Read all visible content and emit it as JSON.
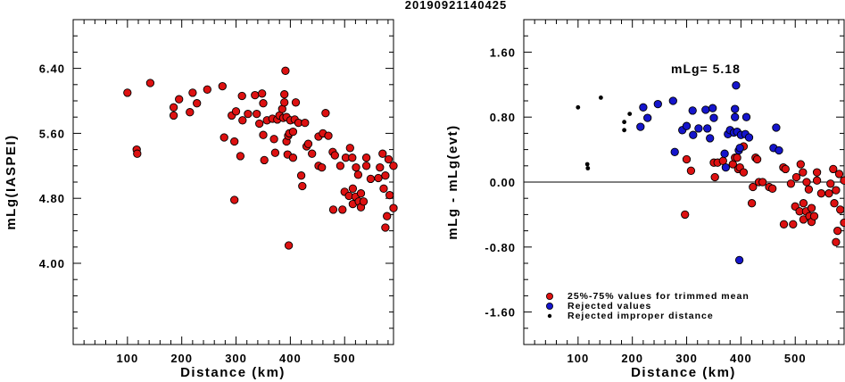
{
  "figure_title": "20190921140425",
  "chart_data": [
    {
      "type": "scatter",
      "xlabel": "Distance (km)",
      "ylabel": "mLg(IASPEI)",
      "xlim": [
        0,
        590
      ],
      "ylim": [
        3.0,
        7.0
      ],
      "xticks": [
        100,
        200,
        300,
        400,
        500
      ],
      "yticks": [
        4.0,
        4.8,
        5.6,
        6.4
      ],
      "ytick_labels": [
        "4.00",
        "4.80",
        "5.60",
        "6.40"
      ],
      "grid": false,
      "series": [
        {
          "color": "#dd1111",
          "points": [
            [
              100,
              6.1
            ],
            [
              117,
              5.4
            ],
            [
              118,
              5.35
            ],
            [
              142,
              6.22
            ],
            [
              185,
              5.92
            ],
            [
              185,
              5.82
            ],
            [
              195,
              6.02
            ],
            [
              215,
              5.86
            ],
            [
              220,
              6.1
            ],
            [
              228,
              5.97
            ],
            [
              247,
              6.14
            ],
            [
              275,
              6.18
            ],
            [
              278,
              5.55
            ],
            [
              292,
              5.82
            ],
            [
              297,
              4.78
            ],
            [
              297,
              5.5
            ],
            [
              300,
              5.87
            ],
            [
              308,
              5.32
            ],
            [
              312,
              5.76
            ],
            [
              311,
              6.06
            ],
            [
              322,
              5.84
            ],
            [
              335,
              6.07
            ],
            [
              338,
              5.84
            ],
            [
              343,
              5.72
            ],
            [
              348,
              6.09
            ],
            [
              350,
              5.97
            ],
            [
              350,
              5.58
            ],
            [
              352,
              5.27
            ],
            [
              357,
              5.76
            ],
            [
              367,
              5.78
            ],
            [
              370,
              5.53
            ],
            [
              372,
              5.36
            ],
            [
              376,
              5.77
            ],
            [
              380,
              5.82
            ],
            [
              385,
              5.9
            ],
            [
              387,
              5.79
            ],
            [
              389,
              5.98
            ],
            [
              389,
              6.08
            ],
            [
              391,
              6.37
            ],
            [
              393,
              5.5
            ],
            [
              393,
              5.8
            ],
            [
              395,
              5.34
            ],
            [
              396,
              5.57
            ],
            [
              397,
              4.22
            ],
            [
              398,
              5.6
            ],
            [
              400,
              5.76
            ],
            [
              405,
              5.3
            ],
            [
              405,
              5.62
            ],
            [
              408,
              5.77
            ],
            [
              410,
              5.98
            ],
            [
              415,
              5.73
            ],
            [
              420,
              5.08
            ],
            [
              422,
              4.95
            ],
            [
              427,
              5.73
            ],
            [
              430,
              5.44
            ],
            [
              433,
              5.47
            ],
            [
              440,
              5.35
            ],
            [
              452,
              5.2
            ],
            [
              452,
              5.56
            ],
            [
              458,
              5.18
            ],
            [
              460,
              5.6
            ],
            [
              465,
              5.85
            ],
            [
              470,
              5.57
            ],
            [
              478,
              5.37
            ],
            [
              479,
              4.66
            ],
            [
              482,
              5.33
            ],
            [
              492,
              5.2
            ],
            [
              496,
              4.66
            ],
            [
              500,
              4.88
            ],
            [
              502,
              5.3
            ],
            [
              508,
              4.83
            ],
            [
              510,
              5.42
            ],
            [
              514,
              5.3
            ],
            [
              515,
              4.73
            ],
            [
              515,
              4.92
            ],
            [
              520,
              4.82
            ],
            [
              521,
              5.18
            ],
            [
              525,
              5.09
            ],
            [
              526,
              4.76
            ],
            [
              530,
              4.86
            ],
            [
              530,
              4.69
            ],
            [
              535,
              4.76
            ],
            [
              540,
              5.2
            ],
            [
              540,
              5.3
            ],
            [
              548,
              5.04
            ],
            [
              562,
              5.05
            ],
            [
              565,
              5.18
            ],
            [
              570,
              5.35
            ],
            [
              572,
              4.92
            ],
            [
              575,
              5.08
            ],
            [
              575,
              4.44
            ],
            [
              578,
              4.58
            ],
            [
              581,
              5.28
            ],
            [
              583,
              4.84
            ],
            [
              590,
              5.2
            ],
            [
              590,
              4.68
            ]
          ]
        }
      ]
    },
    {
      "type": "scatter",
      "annotation": "mLg= 5.18",
      "xlabel": "Distance (km)",
      "ylabel": "mLg - mLg(evt)",
      "xlim": [
        0,
        590
      ],
      "ylim": [
        -2.0,
        2.0
      ],
      "xticks": [
        100,
        200,
        300,
        400,
        500
      ],
      "yticks": [
        -1.6,
        -0.8,
        0.0,
        0.8,
        1.6
      ],
      "ytick_labels": [
        "-1.60",
        "-0.80",
        "0.00",
        "0.80",
        "1.60"
      ],
      "reference_line": 0.0,
      "grid": false,
      "legend_position": "bottom-left",
      "series": [
        {
          "name": "25%-75% values for trimmed mean",
          "color": "#dd1111",
          "marker": "circle",
          "points": [
            [
              297,
              -0.4
            ],
            [
              300,
              0.28
            ],
            [
              308,
              0.14
            ],
            [
              350,
              0.24
            ],
            [
              352,
              0.06
            ],
            [
              357,
              0.24
            ],
            [
              367,
              0.26
            ],
            [
              385,
              0.22
            ],
            [
              389,
              0.3
            ],
            [
              393,
              0.3
            ],
            [
              395,
              0.16
            ],
            [
              398,
              0.18
            ],
            [
              405,
              0.12
            ],
            [
              405,
              0.44
            ],
            [
              420,
              -0.26
            ],
            [
              422,
              -0.06
            ],
            [
              427,
              0.3
            ],
            [
              430,
              0.28
            ],
            [
              433,
              0.0
            ],
            [
              440,
              0.0
            ],
            [
              452,
              -0.06
            ],
            [
              458,
              -0.08
            ],
            [
              478,
              0.18
            ],
            [
              479,
              -0.52
            ],
            [
              482,
              0.16
            ],
            [
              492,
              -0.02
            ],
            [
              496,
              -0.52
            ],
            [
              500,
              -0.3
            ],
            [
              502,
              0.06
            ],
            [
              508,
              -0.36
            ],
            [
              510,
              0.22
            ],
            [
              514,
              0.12
            ],
            [
              515,
              -0.46
            ],
            [
              515,
              -0.26
            ],
            [
              520,
              -0.36
            ],
            [
              521,
              0.0
            ],
            [
              525,
              -0.09
            ],
            [
              526,
              -0.42
            ],
            [
              530,
              -0.32
            ],
            [
              530,
              -0.49
            ],
            [
              535,
              -0.42
            ],
            [
              540,
              0.02
            ],
            [
              540,
              0.12
            ],
            [
              548,
              -0.14
            ],
            [
              562,
              -0.14
            ],
            [
              565,
              -0.02
            ],
            [
              570,
              0.16
            ],
            [
              572,
              -0.26
            ],
            [
              575,
              -0.1
            ],
            [
              575,
              -0.74
            ],
            [
              578,
              -0.6
            ],
            [
              581,
              0.1
            ],
            [
              583,
              -0.34
            ],
            [
              590,
              0.02
            ],
            [
              590,
              -0.5
            ]
          ]
        },
        {
          "name": "Rejected values",
          "color": "#1515cc",
          "marker": "circle",
          "points": [
            [
              215,
              0.68
            ],
            [
              220,
              0.92
            ],
            [
              228,
              0.79
            ],
            [
              247,
              0.96
            ],
            [
              275,
              1.0
            ],
            [
              278,
              0.37
            ],
            [
              292,
              0.64
            ],
            [
              300,
              0.69
            ],
            [
              311,
              0.88
            ],
            [
              312,
              0.58
            ],
            [
              322,
              0.66
            ],
            [
              335,
              0.89
            ],
            [
              338,
              0.66
            ],
            [
              343,
              0.54
            ],
            [
              348,
              0.91
            ],
            [
              350,
              0.79
            ],
            [
              370,
              0.35
            ],
            [
              372,
              0.18
            ],
            [
              376,
              0.59
            ],
            [
              380,
              0.64
            ],
            [
              387,
              0.61
            ],
            [
              389,
              0.8
            ],
            [
              389,
              0.9
            ],
            [
              391,
              1.19
            ],
            [
              393,
              0.62
            ],
            [
              396,
              0.39
            ],
            [
              397,
              -0.96
            ],
            [
              398,
              0.42
            ],
            [
              400,
              0.58
            ],
            [
              408,
              0.59
            ],
            [
              410,
              0.8
            ],
            [
              415,
              0.55
            ],
            [
              460,
              0.42
            ],
            [
              465,
              0.67
            ],
            [
              470,
              0.39
            ]
          ]
        },
        {
          "name": "Rejected improper distance",
          "color": "#000000",
          "marker": "dot",
          "points": [
            [
              100,
              0.92
            ],
            [
              117,
              0.22
            ],
            [
              118,
              0.17
            ],
            [
              142,
              1.04
            ],
            [
              185,
              0.74
            ],
            [
              185,
              0.64
            ],
            [
              195,
              0.84
            ]
          ]
        }
      ]
    }
  ]
}
